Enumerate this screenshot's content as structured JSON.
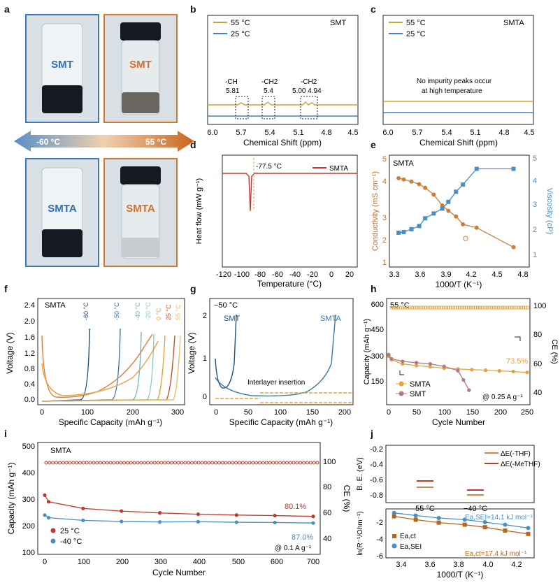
{
  "panels": {
    "a": {
      "letter": "a",
      "vial_labels": [
        "SMT",
        "SMT",
        "SMTA",
        "SMTA"
      ],
      "arrow_left": "-60 °C",
      "arrow_right": "55 °C"
    },
    "b": {
      "letter": "b",
      "tag": "SMT",
      "legend": [
        "55 °C",
        "25 °C"
      ],
      "xlabel": "Chemical Shift (ppm)",
      "xticks": [
        "6.0",
        "5.7",
        "5.4",
        "5.1",
        "4.8",
        "4.5"
      ],
      "peaks": [
        {
          "group": "-CH",
          "shift": "5.81"
        },
        {
          "group": "-CH2",
          "shift": "5.4"
        },
        {
          "group": "-CH2",
          "shift": "5.00  4.94"
        }
      ]
    },
    "c": {
      "letter": "c",
      "tag": "SMTA",
      "legend": [
        "55 °C",
        "25 °C"
      ],
      "xlabel": "Chemical Shift (ppm)",
      "xticks": [
        "6.0",
        "5.7",
        "5.4",
        "5.1",
        "4.8",
        "4.5"
      ],
      "note": [
        "No impurity peaks occur",
        "at high temperature"
      ]
    },
    "d": {
      "letter": "d",
      "legend": "SMTA",
      "annotation": "-77.5 °C",
      "xlabel": "Temperature (°C)",
      "ylabel": "Heat flow (mW g⁻¹)",
      "xticks": [
        "-120",
        "-100",
        "-80",
        "-60",
        "-40",
        "-20",
        "0",
        "20"
      ]
    },
    "e": {
      "letter": "e",
      "tag": "SMTA",
      "xlabel": "1000/T (K⁻¹)",
      "ylabel_left": "Conductivity (mS cm⁻¹)",
      "ylabel_right": "Viscosity (cP)",
      "xticks": [
        "3.3",
        "3.6",
        "3.9",
        "4.2",
        "4.5",
        "4.8"
      ],
      "yticks_left": [
        "1",
        "2",
        "3",
        "4",
        "5"
      ],
      "yticks_right": [
        "1",
        "2",
        "3",
        "4",
        "5"
      ]
    },
    "f": {
      "letter": "f",
      "tag": "SMTA",
      "xlabel": "Specific Capacity (mAh g⁻¹)",
      "ylabel": "Voltage (V)",
      "xticks": [
        "0",
        "100",
        "200",
        "300"
      ],
      "yticks": [
        "0.0",
        "0.4",
        "0.8",
        "1.2",
        "1.6",
        "2.0",
        "2.4"
      ],
      "temps": [
        "-60 °C",
        "-50 °C",
        "-40 °C",
        "-20 °C",
        "0 °C",
        "25 °C",
        "55 °C"
      ]
    },
    "g": {
      "letter": "g",
      "tag": "−50 °C",
      "labels": [
        "SMT",
        "SMTA"
      ],
      "annotation": "Interlayer insertion",
      "xlabel": "Specific Capacity (mAh g⁻¹)",
      "ylabel": "Voltage (V)",
      "xticks": [
        "0",
        "50",
        "100",
        "150",
        "200"
      ],
      "yticks": [
        "0",
        "1",
        "2"
      ]
    },
    "h": {
      "letter": "h",
      "tag": "55 °C",
      "retention": "73.5%",
      "rate": "@ 0.25 A g⁻¹",
      "legend": [
        "SMTA",
        "SMT"
      ],
      "xlabel": "Cycle Number",
      "ylabel_left": "Capacity (mAh g⁻¹)",
      "ylabel_right": "CE (%)",
      "xticks": [
        "0",
        "50",
        "100",
        "150",
        "200",
        "250"
      ],
      "yticks_left": [
        "150",
        "300",
        "450",
        "600"
      ],
      "yticks_right": [
        "40",
        "60",
        "80",
        "100"
      ]
    },
    "i": {
      "letter": "i",
      "tag": "SMTA",
      "retention_25": "80.1%",
      "retention_m40": "87.0%",
      "rate": "@ 0.1 A g⁻¹",
      "legend": [
        "25 °C",
        "-40 °C"
      ],
      "xlabel": "Cycle Number",
      "ylabel_left": "Capacity (mAh g⁻¹)",
      "ylabel_right": "CE (%)",
      "xticks": [
        "0",
        "100",
        "200",
        "300",
        "400",
        "500",
        "600",
        "700"
      ],
      "yticks_left": [
        "100",
        "200",
        "300",
        "400",
        "500"
      ],
      "yticks_right": [
        "40",
        "60",
        "80",
        "100"
      ]
    },
    "j": {
      "letter": "j",
      "top_ylabel": "B. E. (eV)",
      "top_yticks": [
        "-0.2",
        "-0.4",
        "-0.6",
        "-0.8"
      ],
      "top_legend": [
        "ΔE(-THF)",
        "ΔE(-MeTHF)"
      ],
      "top_xlabels": [
        "55 °C",
        "−40 °C"
      ],
      "bottom_ylabel": "ln(R⁻¹/Ohm⁻¹)",
      "bottom_yticks": [
        "-2",
        "-4",
        "-6"
      ],
      "bottom_xlabel": "1000/T (K⁻¹)",
      "bottom_xticks": [
        "3.4",
        "3.6",
        "3.8",
        "4.0",
        "4.2"
      ],
      "legend": [
        "Ea,ct",
        "Ea,SEI"
      ],
      "ea_sei": "Ea,SEI=14.1 kJ mol⁻¹",
      "ea_ct": "Ea,ct=17.4 kJ mol⁻¹"
    }
  },
  "chart_data": [
    {
      "panel": "e",
      "type": "line",
      "title": "",
      "xlabel": "1000/T (K⁻¹)",
      "series": [
        {
          "name": "Conductivity",
          "x": [
            3.35,
            3.41,
            3.5,
            3.59,
            3.66,
            3.76,
            3.86,
            3.93,
            4.02,
            4.1,
            4.26,
            4.69
          ],
          "y": [
            4.25,
            4.2,
            4.12,
            4.02,
            3.88,
            3.62,
            3.2,
            3.0,
            2.78,
            2.48,
            2.35,
            1.6
          ]
        },
        {
          "name": "Viscosity",
          "x": [
            3.35,
            3.41,
            3.5,
            3.59,
            3.66,
            3.76,
            3.86,
            3.93,
            4.02,
            4.1,
            4.26,
            4.69
          ],
          "y": [
            1.9,
            1.93,
            2.05,
            2.18,
            2.5,
            2.7,
            2.9,
            3.18,
            3.6,
            3.9,
            4.55,
            4.55
          ]
        }
      ]
    },
    {
      "panel": "h",
      "type": "scatter",
      "xlabel": "Cycle Number",
      "series": [
        {
          "name": "SMTA",
          "x": [
            0,
            5,
            25,
            50,
            75,
            100,
            125,
            150,
            175,
            200,
            225,
            250
          ],
          "y": [
            300,
            280,
            255,
            245,
            238,
            230,
            225,
            221,
            218,
            214,
            210,
            205
          ]
        },
        {
          "name": "SMT",
          "x": [
            0,
            5,
            25,
            50,
            75,
            100,
            125,
            135,
            145
          ],
          "y": [
            310,
            285,
            270,
            262,
            255,
            240,
            215,
            160,
            100
          ]
        }
      ]
    },
    {
      "panel": "i",
      "type": "scatter",
      "xlabel": "Cycle Number",
      "series": [
        {
          "name": "25 °C",
          "x": [
            0,
            10,
            100,
            200,
            300,
            400,
            500,
            600,
            700
          ],
          "y": [
            315,
            290,
            265,
            255,
            248,
            243,
            240,
            238,
            235
          ]
        },
        {
          "name": "-40 °C",
          "x": [
            0,
            10,
            100,
            200,
            300,
            400,
            500,
            600,
            700
          ],
          "y": [
            240,
            230,
            220,
            216,
            214,
            215,
            213,
            212,
            210
          ]
        }
      ]
    },
    {
      "panel": "j",
      "type": "scatter",
      "xlabel": "1000/T (K⁻¹)",
      "series": [
        {
          "name": "Ea,ct",
          "x": [
            3.35,
            3.5,
            3.66,
            3.84,
            3.98,
            4.12,
            4.28
          ],
          "y": [
            -1.3,
            -1.7,
            -2.05,
            -2.3,
            -2.6,
            -3.0,
            -3.4
          ]
        },
        {
          "name": "Ea,SEI",
          "x": [
            3.35,
            3.5,
            3.66,
            3.84,
            3.98,
            4.12,
            4.28
          ],
          "y": [
            -0.9,
            -1.2,
            -1.5,
            -1.7,
            -2.0,
            -2.3,
            -2.7
          ]
        }
      ]
    }
  ]
}
